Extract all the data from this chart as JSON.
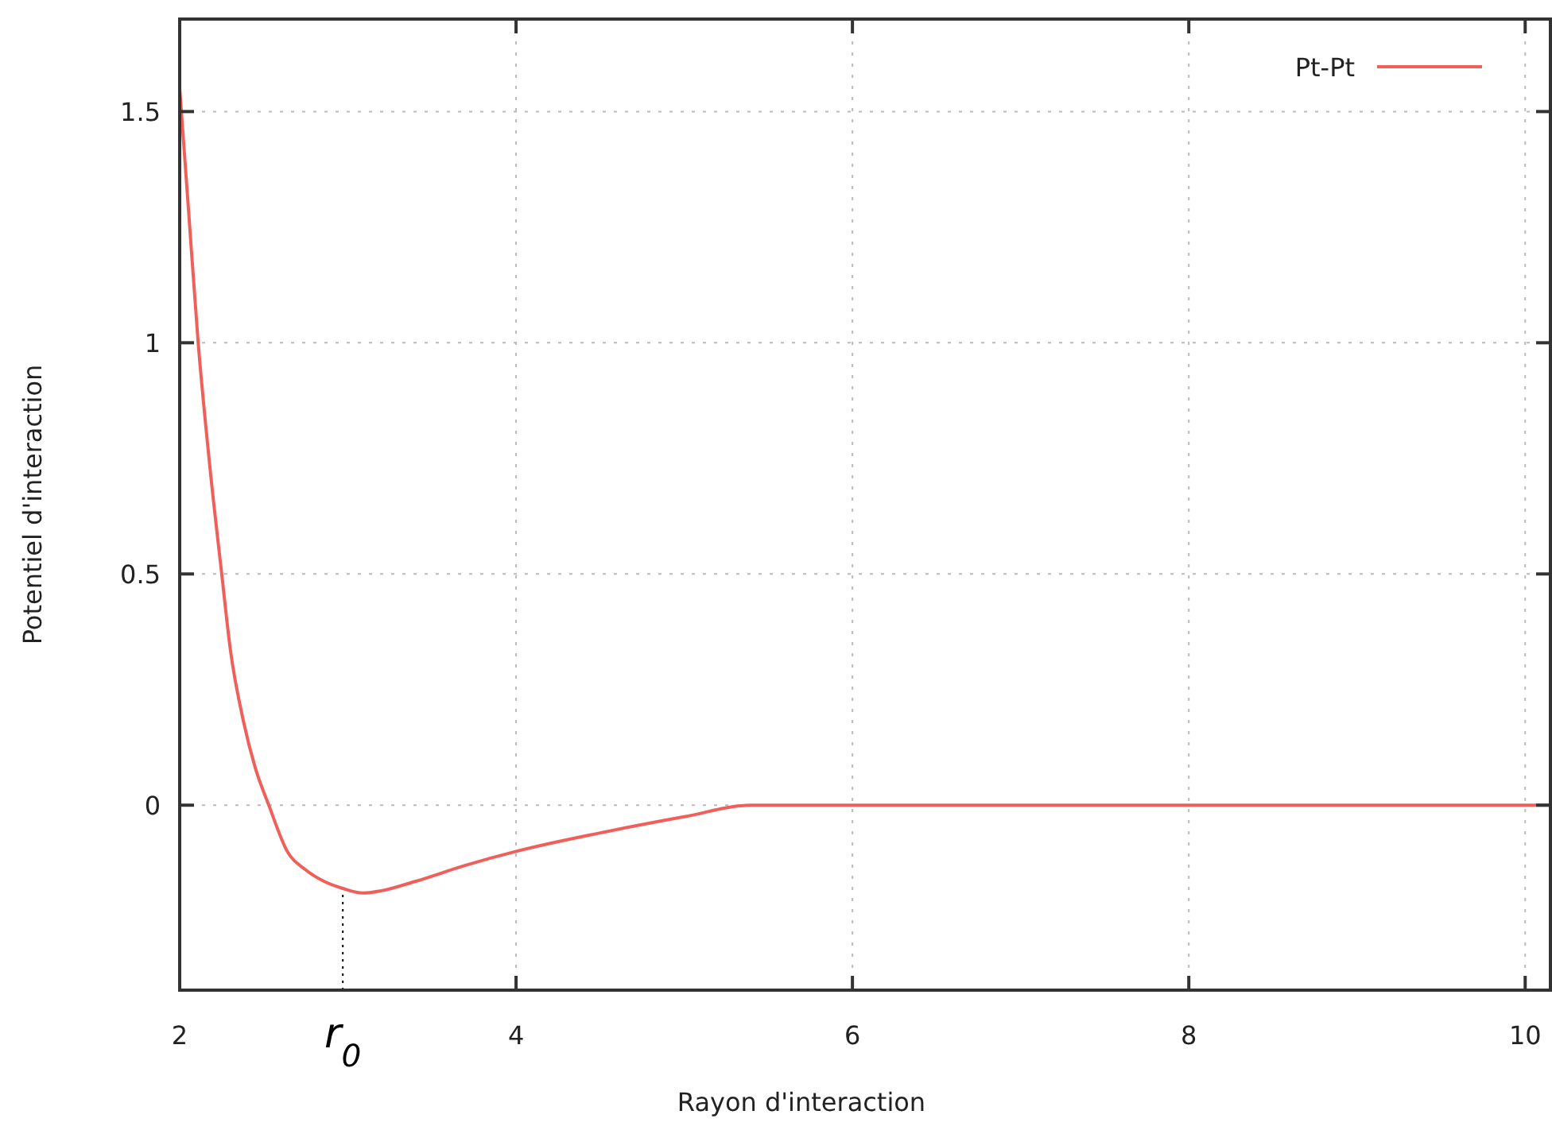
{
  "chart_data": {
    "type": "line",
    "xlabel": "Rayon d'interaction",
    "ylabel": "Potentiel d'interaction",
    "x": [
      2,
      2.05,
      2.11,
      2.18,
      2.25,
      2.3,
      2.38,
      2.45,
      2.53,
      2.64,
      2.75,
      2.86,
      2.97,
      3.09,
      3.2,
      3.4,
      3.7,
      4,
      4.5,
      5,
      5.4,
      5.6,
      6,
      8,
      10.15
    ],
    "series": [
      {
        "name": "Pt-Pt",
        "color": "#f0605a",
        "values": [
          1.55,
          1.3,
          1.0,
          0.73,
          0.5,
          0.34,
          0.18,
          0.08,
          0,
          -0.1,
          -0.14,
          -0.165,
          -0.18,
          -0.19,
          -0.185,
          -0.165,
          -0.13,
          -0.1,
          -0.06,
          -0.025,
          0,
          0,
          0,
          0,
          0
        ]
      }
    ],
    "xlim": [
      2,
      10.15
    ],
    "ylim": [
      -0.4,
      1.7
    ],
    "xticks": [
      2,
      4,
      6,
      8,
      10
    ],
    "yticks": [
      0,
      0.5,
      1,
      1.5
    ],
    "ref_lines": [
      {
        "axis": "x",
        "value": 2.97,
        "label": "r$_{0}$",
        "line_style": "dotted",
        "color": "#000000"
      }
    ],
    "grid": true,
    "legend": "top right",
    "marker": "none",
    "line_style": "solid"
  }
}
